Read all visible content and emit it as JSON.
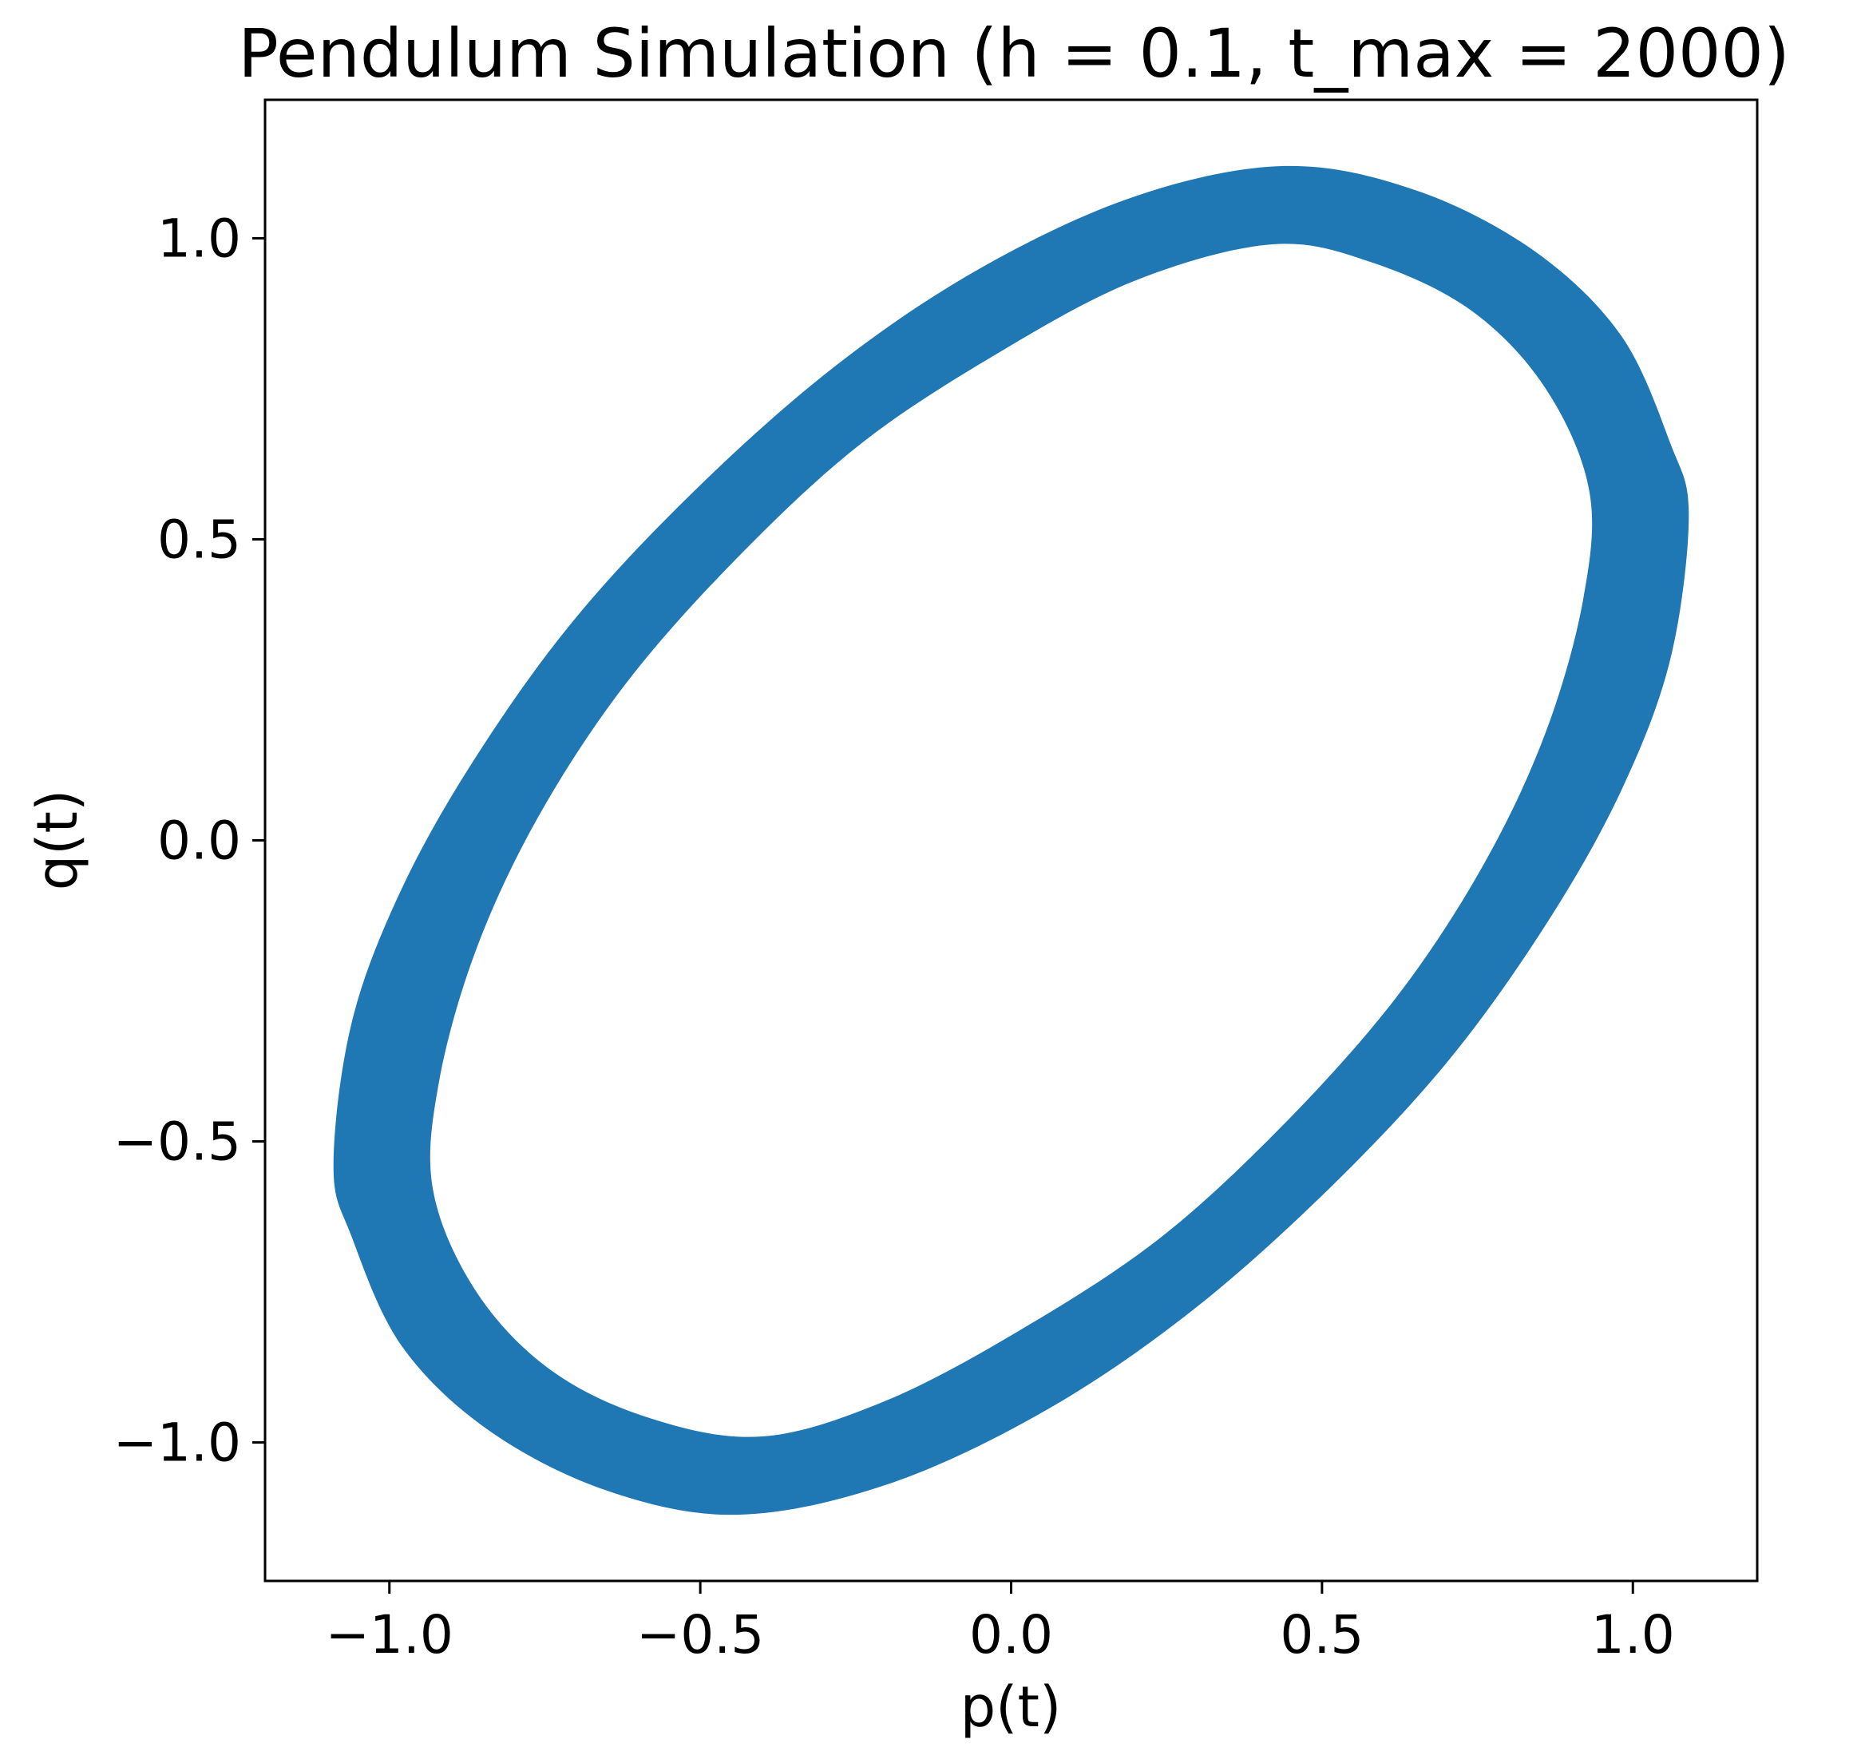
{
  "chart_data": {
    "type": "scatter",
    "title": "Pendulum Simulation (h = 0.1, t_max = 2000)",
    "xlabel": "p(t)",
    "ylabel": "q(t)",
    "xlim": [
      -1.2,
      1.2
    ],
    "ylim": [
      -1.23,
      1.23
    ],
    "grid": false,
    "legend": "none",
    "xticks": [
      -1.0,
      -0.5,
      0.0,
      0.5,
      1.0
    ],
    "yticks": [
      -1.0,
      -0.5,
      0.0,
      0.5,
      1.0
    ],
    "xtick_labels": [
      "−1.0",
      "−0.5",
      "0.0",
      "0.5",
      "1.0"
    ],
    "ytick_labels": [
      "−1.0",
      "−0.5",
      "0.0",
      "0.5",
      "1.0"
    ],
    "series_color": "#1f77b4",
    "band": {
      "outer": [
        [
          0.44,
          1.12
        ],
        [
          0.65,
          1.08
        ],
        [
          0.84,
          0.98
        ],
        [
          0.98,
          0.84
        ],
        [
          1.06,
          0.66
        ],
        [
          1.09,
          0.54
        ],
        [
          1.06,
          0.3
        ],
        [
          0.98,
          0.08
        ],
        [
          0.86,
          -0.14
        ],
        [
          0.7,
          -0.37
        ],
        [
          0.5,
          -0.59
        ],
        [
          0.28,
          -0.79
        ],
        [
          0.05,
          -0.95
        ],
        [
          -0.2,
          -1.07
        ],
        [
          -0.44,
          -1.12
        ],
        [
          -0.65,
          -1.08
        ],
        [
          -0.84,
          -0.98
        ],
        [
          -0.98,
          -0.84
        ],
        [
          -1.06,
          -0.66
        ],
        [
          -1.09,
          -0.54
        ],
        [
          -1.06,
          -0.3
        ],
        [
          -0.98,
          -0.08
        ],
        [
          -0.86,
          0.14
        ],
        [
          -0.7,
          0.37
        ],
        [
          -0.5,
          0.59
        ],
        [
          -0.28,
          0.79
        ],
        [
          -0.05,
          0.95
        ],
        [
          0.2,
          1.07
        ]
      ],
      "inner": [
        [
          0.42,
          0.99
        ],
        [
          0.58,
          0.96
        ],
        [
          0.74,
          0.88
        ],
        [
          0.86,
          0.75
        ],
        [
          0.93,
          0.58
        ],
        [
          0.92,
          0.4
        ],
        [
          0.86,
          0.18
        ],
        [
          0.76,
          -0.04
        ],
        [
          0.62,
          -0.26
        ],
        [
          0.44,
          -0.47
        ],
        [
          0.24,
          -0.66
        ],
        [
          0.02,
          -0.81
        ],
        [
          -0.2,
          -0.93
        ],
        [
          -0.4,
          -0.99
        ],
        [
          -0.58,
          -0.96
        ],
        [
          -0.74,
          -0.88
        ],
        [
          -0.86,
          -0.75
        ],
        [
          -0.93,
          -0.58
        ],
        [
          -0.92,
          -0.4
        ],
        [
          -0.86,
          -0.18
        ],
        [
          -0.76,
          0.04
        ],
        [
          -0.62,
          0.26
        ],
        [
          -0.44,
          0.47
        ],
        [
          -0.24,
          0.66
        ],
        [
          -0.02,
          0.81
        ],
        [
          0.2,
          0.93
        ]
      ]
    }
  }
}
